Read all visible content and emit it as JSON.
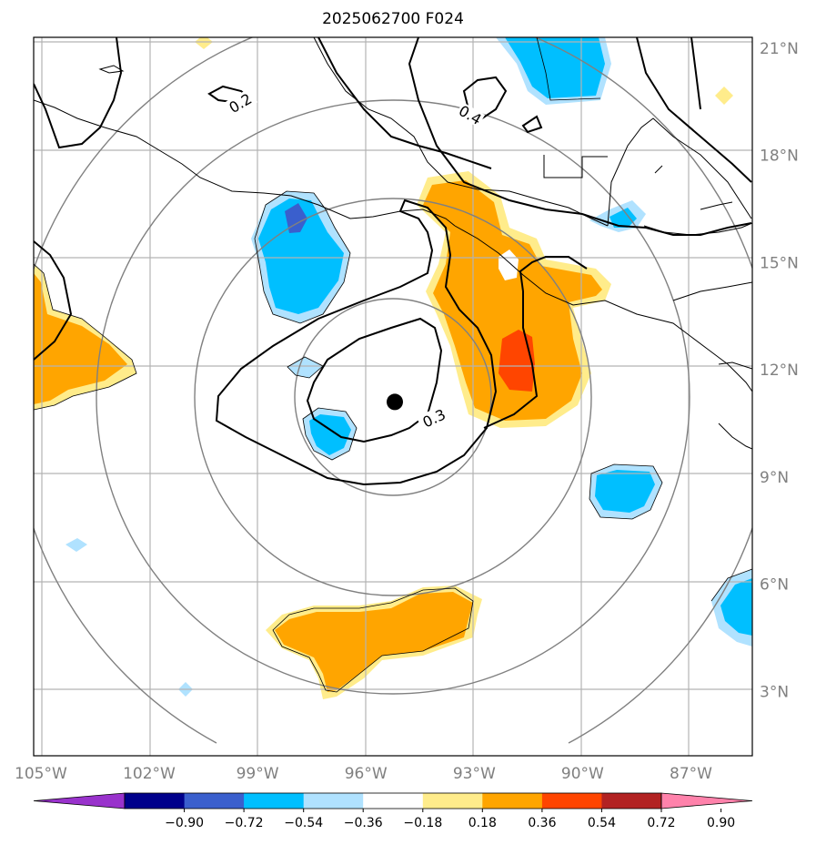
{
  "title": "2025062700 F024",
  "map": {
    "lon_range": [
      -105.2,
      -85.3
    ],
    "lat_range": [
      1.2,
      21.3
    ],
    "lon_ticks": [
      {
        "value": -105,
        "label": "105°W"
      },
      {
        "value": -102,
        "label": "102°W"
      },
      {
        "value": -99,
        "label": "99°W"
      },
      {
        "value": -96,
        "label": "96°W"
      },
      {
        "value": -93,
        "label": "93°W"
      },
      {
        "value": -90,
        "label": "90°W"
      },
      {
        "value": -87,
        "label": "87°W"
      }
    ],
    "lat_ticks": [
      {
        "value": 3,
        "label": "3°N"
      },
      {
        "value": 6,
        "label": "6°N"
      },
      {
        "value": 9,
        "label": "9°N"
      },
      {
        "value": 12,
        "label": "12°N"
      },
      {
        "value": 15,
        "label": "15°N"
      },
      {
        "value": 18,
        "label": "18°N"
      },
      {
        "value": 21,
        "label": "21°N"
      }
    ],
    "storm_center": {
      "lon": -95.2,
      "lat": 11.1
    },
    "contour_labels": [
      "0.2",
      "0.4",
      "0.3"
    ],
    "grid": true
  },
  "colorbar": {
    "colors": [
      "#9932cc",
      "#00008b",
      "#3a5fcd",
      "#00bfff",
      "#b0e2ff",
      "#ffffff",
      "#ffec8b",
      "#ffa500",
      "#ff4500",
      "#b22222",
      "#ff82ab"
    ],
    "tick_labels": [
      "−0.90",
      "−0.72",
      "−0.54",
      "−0.36",
      "−0.18",
      "0.18",
      "0.36",
      "0.54",
      "0.72",
      "0.90"
    ],
    "extend": "both"
  }
}
